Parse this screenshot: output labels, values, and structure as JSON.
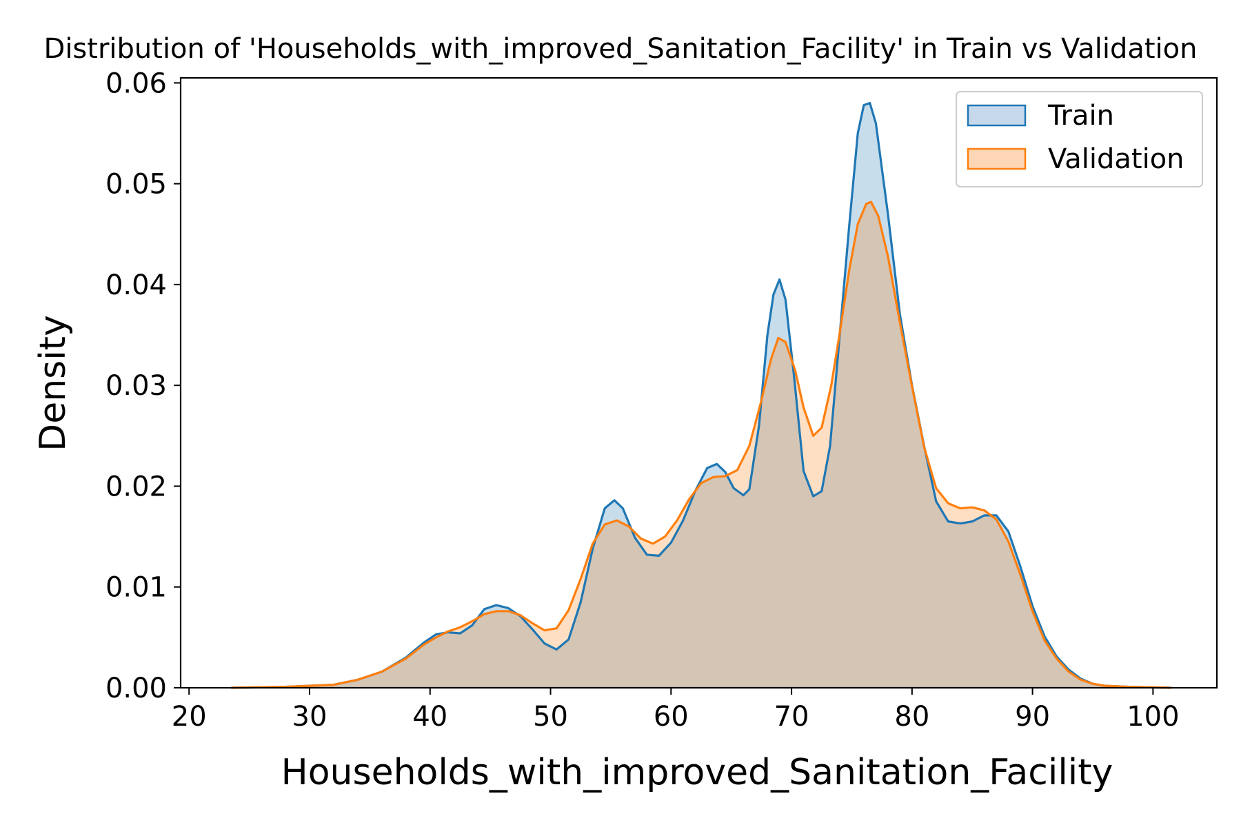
{
  "chart_data": {
    "type": "area",
    "title": "Distribution of 'Households_with_improved_Sanitation_Facility' in Train vs Validation",
    "xlabel": "Households_with_improved_Sanitation_Facility",
    "ylabel": "Density",
    "xlim": [
      19.3,
      105.3
    ],
    "ylim": [
      0,
      0.0605
    ],
    "xticks": [
      20,
      30,
      40,
      50,
      60,
      70,
      80,
      90,
      100
    ],
    "yticks": [
      0.0,
      0.01,
      0.02,
      0.03,
      0.04,
      0.05,
      0.06
    ],
    "ytick_labels": [
      "0.00",
      "0.01",
      "0.02",
      "0.03",
      "0.04",
      "0.05",
      "0.06"
    ],
    "grid": false,
    "legend_position": "top-right",
    "series": [
      {
        "name": "Train",
        "color": "#1f77b4",
        "fill": "#c6d9ec",
        "points": [
          [
            23.5,
            0.0
          ],
          [
            28,
            0.0001
          ],
          [
            32,
            0.0003
          ],
          [
            34,
            0.0008
          ],
          [
            36,
            0.0016
          ],
          [
            38,
            0.003
          ],
          [
            39.5,
            0.0045
          ],
          [
            40.5,
            0.0053
          ],
          [
            41.5,
            0.0055
          ],
          [
            42.5,
            0.0054
          ],
          [
            43.5,
            0.0062
          ],
          [
            44.5,
            0.0078
          ],
          [
            45.5,
            0.0082
          ],
          [
            46.5,
            0.0079
          ],
          [
            47.5,
            0.0071
          ],
          [
            48.5,
            0.0058
          ],
          [
            49.5,
            0.0044
          ],
          [
            50.5,
            0.0038
          ],
          [
            51.5,
            0.0048
          ],
          [
            52.5,
            0.0085
          ],
          [
            53.5,
            0.0138
          ],
          [
            54.5,
            0.0178
          ],
          [
            55.3,
            0.0186
          ],
          [
            56,
            0.0178
          ],
          [
            57,
            0.0149
          ],
          [
            58,
            0.0132
          ],
          [
            59,
            0.0131
          ],
          [
            60,
            0.0144
          ],
          [
            61,
            0.0166
          ],
          [
            62,
            0.0195
          ],
          [
            63,
            0.0218
          ],
          [
            63.8,
            0.0222
          ],
          [
            64.5,
            0.0214
          ],
          [
            65.2,
            0.0198
          ],
          [
            66,
            0.0191
          ],
          [
            66.5,
            0.0197
          ],
          [
            67.3,
            0.026
          ],
          [
            68,
            0.035
          ],
          [
            68.5,
            0.039
          ],
          [
            69,
            0.0405
          ],
          [
            69.5,
            0.0385
          ],
          [
            70.2,
            0.031
          ],
          [
            71,
            0.0215
          ],
          [
            71.8,
            0.019
          ],
          [
            72.5,
            0.0195
          ],
          [
            73.2,
            0.024
          ],
          [
            74,
            0.035
          ],
          [
            74.8,
            0.046
          ],
          [
            75.5,
            0.055
          ],
          [
            76,
            0.0578
          ],
          [
            76.5,
            0.058
          ],
          [
            77,
            0.056
          ],
          [
            78,
            0.047
          ],
          [
            79,
            0.037
          ],
          [
            80,
            0.03
          ],
          [
            81,
            0.024
          ],
          [
            82,
            0.0185
          ],
          [
            83,
            0.0165
          ],
          [
            84,
            0.0163
          ],
          [
            85,
            0.0165
          ],
          [
            86,
            0.0171
          ],
          [
            87,
            0.0171
          ],
          [
            88,
            0.0155
          ],
          [
            89,
            0.012
          ],
          [
            90,
            0.0081
          ],
          [
            91,
            0.0051
          ],
          [
            92,
            0.0031
          ],
          [
            93,
            0.0018
          ],
          [
            94,
            0.0009
          ],
          [
            95,
            0.0004
          ],
          [
            96,
            0.0002
          ],
          [
            98,
            0.0001
          ],
          [
            101.5,
            0.0
          ]
        ]
      },
      {
        "name": "Validation",
        "color": "#ff7f0e",
        "fill": "#fdd6b6",
        "points": [
          [
            23.5,
            0.0
          ],
          [
            28,
            0.0001
          ],
          [
            32,
            0.0003
          ],
          [
            34,
            0.0008
          ],
          [
            36,
            0.0016
          ],
          [
            38,
            0.0029
          ],
          [
            39.5,
            0.0043
          ],
          [
            40.5,
            0.005
          ],
          [
            41.5,
            0.0056
          ],
          [
            42.5,
            0.006
          ],
          [
            43.5,
            0.0066
          ],
          [
            44.5,
            0.0073
          ],
          [
            45.5,
            0.0076
          ],
          [
            46.5,
            0.0076
          ],
          [
            47.5,
            0.0072
          ],
          [
            48.5,
            0.0064
          ],
          [
            49.5,
            0.0057
          ],
          [
            50.5,
            0.0059
          ],
          [
            51.5,
            0.0077
          ],
          [
            52.5,
            0.0108
          ],
          [
            53.5,
            0.0143
          ],
          [
            54.5,
            0.0162
          ],
          [
            55.5,
            0.0166
          ],
          [
            56.5,
            0.016
          ],
          [
            57.5,
            0.0148
          ],
          [
            58.5,
            0.0143
          ],
          [
            59.5,
            0.015
          ],
          [
            60.5,
            0.0166
          ],
          [
            61.5,
            0.0187
          ],
          [
            62.5,
            0.0203
          ],
          [
            63.5,
            0.0209
          ],
          [
            64.5,
            0.021
          ],
          [
            65.5,
            0.0216
          ],
          [
            66.5,
            0.024
          ],
          [
            67.5,
            0.0285
          ],
          [
            68.3,
            0.0326
          ],
          [
            68.9,
            0.0347
          ],
          [
            69.5,
            0.0343
          ],
          [
            70.3,
            0.0315
          ],
          [
            71,
            0.0278
          ],
          [
            71.8,
            0.025
          ],
          [
            72.5,
            0.0258
          ],
          [
            73.3,
            0.03
          ],
          [
            74,
            0.0352
          ],
          [
            74.8,
            0.0415
          ],
          [
            75.5,
            0.046
          ],
          [
            76.2,
            0.048
          ],
          [
            76.6,
            0.0482
          ],
          [
            77.2,
            0.0468
          ],
          [
            78,
            0.0428
          ],
          [
            79,
            0.0362
          ],
          [
            80,
            0.0299
          ],
          [
            81,
            0.0239
          ],
          [
            82,
            0.0198
          ],
          [
            83,
            0.0183
          ],
          [
            84,
            0.0178
          ],
          [
            85,
            0.0179
          ],
          [
            86,
            0.0176
          ],
          [
            87,
            0.0167
          ],
          [
            88,
            0.0145
          ],
          [
            89,
            0.0112
          ],
          [
            90,
            0.0076
          ],
          [
            91,
            0.0047
          ],
          [
            92,
            0.0029
          ],
          [
            93,
            0.0016
          ],
          [
            94,
            0.0008
          ],
          [
            95,
            0.0004
          ],
          [
            96,
            0.0002
          ],
          [
            98,
            0.0001
          ],
          [
            101.5,
            0.0
          ]
        ]
      }
    ]
  }
}
